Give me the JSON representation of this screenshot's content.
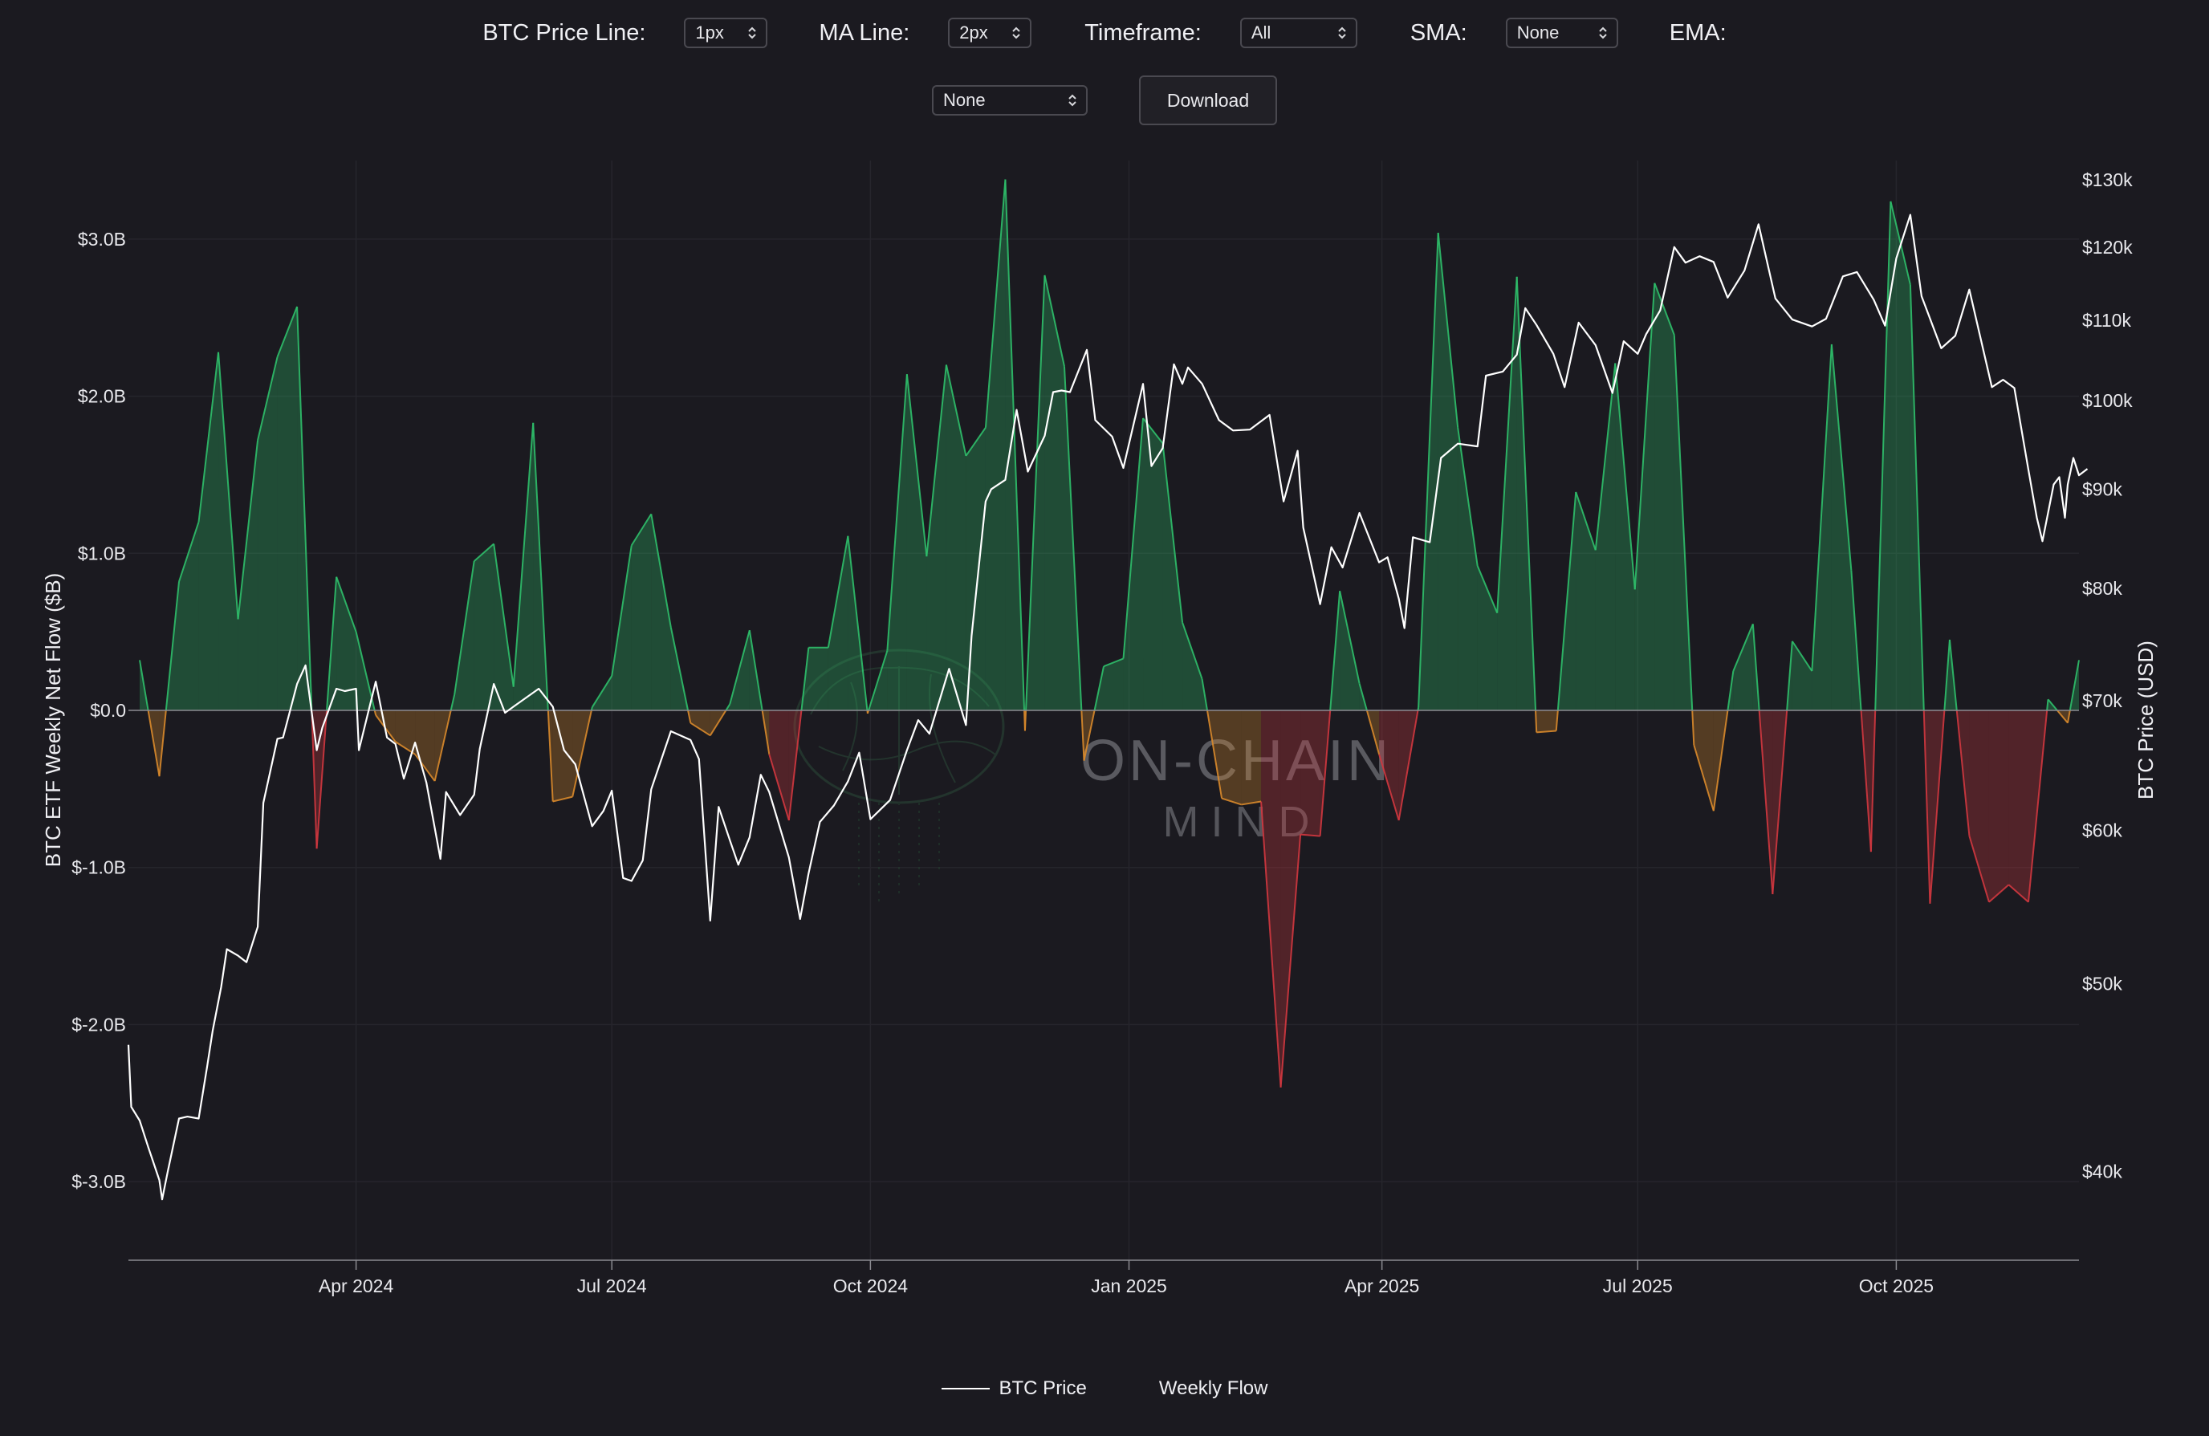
{
  "controls": {
    "price_line_label": "BTC Price Line:",
    "price_line_value": "1px",
    "ma_line_label": "MA Line:",
    "ma_line_value": "2px",
    "timeframe_label": "Timeframe:",
    "timeframe_value": "All",
    "sma_label": "SMA:",
    "sma_value": "None",
    "ema_label": "EMA:",
    "ema_value": "None",
    "download_label": "Download"
  },
  "watermark": {
    "line1": "ON-CHAIN",
    "line2": "M I N D"
  },
  "colors": {
    "background": "#1b1a20",
    "inflow": "#2fbf6a",
    "outflow": "#d1373f",
    "small_outflow": "#d98a2b",
    "price_line": "#ffffff",
    "zero_line": "#8a8a90"
  },
  "legend": {
    "price": "BTC Price",
    "flow": "Weekly Flow"
  },
  "chart_data": {
    "type": "area",
    "ylabel": "BTC ETF Weekly Net Flow ($B)",
    "y2label": "BTC Price (USD)",
    "ylim": [
      -3.5,
      3.5
    ],
    "y2lim": [
      36000,
      133000
    ],
    "y2scale": "log",
    "xlim": [
      "2024-01-11",
      "2025-12-05"
    ],
    "y_ticks": [
      {
        "v": 3,
        "label": "$3.0B"
      },
      {
        "v": 2,
        "label": "$2.0B"
      },
      {
        "v": 1,
        "label": "$1.0B"
      },
      {
        "v": 0,
        "label": "$0.0"
      },
      {
        "v": -1,
        "label": "$-1.0B"
      },
      {
        "v": -2,
        "label": "$-2.0B"
      },
      {
        "v": -3,
        "label": "$-3.0B"
      }
    ],
    "y2_ticks": [
      {
        "v": 130000,
        "label": "$130k"
      },
      {
        "v": 120000,
        "label": "$120k"
      },
      {
        "v": 110000,
        "label": "$110k"
      },
      {
        "v": 100000,
        "label": "$100k"
      },
      {
        "v": 90000,
        "label": "$90k"
      },
      {
        "v": 80000,
        "label": "$80k"
      },
      {
        "v": 70000,
        "label": "$70k"
      },
      {
        "v": 60000,
        "label": "$60k"
      },
      {
        "v": 50000,
        "label": "$50k"
      },
      {
        "v": 40000,
        "label": "$40k"
      }
    ],
    "x_ticks": [
      {
        "date": "2024-04-01",
        "label": "Apr 2024"
      },
      {
        "date": "2024-07-01",
        "label": "Jul 2024"
      },
      {
        "date": "2024-10-01",
        "label": "Oct 2024"
      },
      {
        "date": "2025-01-01",
        "label": "Jan 2025"
      },
      {
        "date": "2025-04-01",
        "label": "Apr 2025"
      },
      {
        "date": "2025-07-01",
        "label": "Jul 2025"
      },
      {
        "date": "2025-10-01",
        "label": "Oct 2025"
      }
    ],
    "flow_series": {
      "name": "Weekly Flow",
      "points": [
        [
          "2024-01-15",
          0.32
        ],
        [
          "2024-01-22",
          -0.42
        ],
        [
          "2024-01-29",
          0.82
        ],
        [
          "2024-02-05",
          1.2
        ],
        [
          "2024-02-12",
          2.28
        ],
        [
          "2024-02-19",
          0.58
        ],
        [
          "2024-02-26",
          1.72
        ],
        [
          "2024-03-04",
          2.25
        ],
        [
          "2024-03-11",
          2.57
        ],
        [
          "2024-03-18",
          -0.88
        ],
        [
          "2024-03-25",
          0.85
        ],
        [
          "2024-04-01",
          0.5
        ],
        [
          "2024-04-08",
          -0.03
        ],
        [
          "2024-04-15",
          -0.2
        ],
        [
          "2024-04-22",
          -0.28
        ],
        [
          "2024-04-29",
          -0.45
        ],
        [
          "2024-05-06",
          0.1
        ],
        [
          "2024-05-13",
          0.95
        ],
        [
          "2024-05-20",
          1.06
        ],
        [
          "2024-05-27",
          0.15
        ],
        [
          "2024-06-03",
          1.83
        ],
        [
          "2024-06-10",
          -0.58
        ],
        [
          "2024-06-17",
          -0.55
        ],
        [
          "2024-06-24",
          0.02
        ],
        [
          "2024-07-01",
          0.22
        ],
        [
          "2024-07-08",
          1.05
        ],
        [
          "2024-07-15",
          1.25
        ],
        [
          "2024-07-22",
          0.53
        ],
        [
          "2024-07-29",
          -0.08
        ],
        [
          "2024-08-05",
          -0.16
        ],
        [
          "2024-08-12",
          0.04
        ],
        [
          "2024-08-19",
          0.51
        ],
        [
          "2024-08-26",
          -0.28
        ],
        [
          "2024-09-02",
          -0.7
        ],
        [
          "2024-09-09",
          0.4
        ],
        [
          "2024-09-16",
          0.4
        ],
        [
          "2024-09-23",
          1.11
        ],
        [
          "2024-09-30",
          -0.02
        ],
        [
          "2024-10-07",
          0.38
        ],
        [
          "2024-10-14",
          2.14
        ],
        [
          "2024-10-21",
          0.98
        ],
        [
          "2024-10-28",
          2.2
        ],
        [
          "2024-11-04",
          1.62
        ],
        [
          "2024-11-11",
          1.8
        ],
        [
          "2024-11-18",
          3.38
        ],
        [
          "2024-11-25",
          -0.13
        ],
        [
          "2024-12-02",
          2.77
        ],
        [
          "2024-12-09",
          2.19
        ],
        [
          "2024-12-16",
          -0.32
        ],
        [
          "2024-12-23",
          0.28
        ],
        [
          "2024-12-30",
          0.33
        ],
        [
          "2025-01-06",
          1.86
        ],
        [
          "2025-01-13",
          1.7
        ],
        [
          "2025-01-20",
          0.56
        ],
        [
          "2025-01-27",
          0.2
        ],
        [
          "2025-02-03",
          -0.56
        ],
        [
          "2025-02-10",
          -0.6
        ],
        [
          "2025-02-17",
          -0.58
        ],
        [
          "2025-02-24",
          -2.4
        ],
        [
          "2025-03-03",
          -0.79
        ],
        [
          "2025-03-10",
          -0.8
        ],
        [
          "2025-03-17",
          0.76
        ],
        [
          "2025-03-24",
          0.17
        ],
        [
          "2025-03-31",
          -0.28
        ],
        [
          "2025-04-07",
          -0.7
        ],
        [
          "2025-04-14",
          0.02
        ],
        [
          "2025-04-21",
          3.04
        ],
        [
          "2025-04-28",
          1.8
        ],
        [
          "2025-05-05",
          0.92
        ],
        [
          "2025-05-12",
          0.62
        ],
        [
          "2025-05-19",
          2.76
        ],
        [
          "2025-05-26",
          -0.14
        ],
        [
          "2025-06-02",
          -0.13
        ],
        [
          "2025-06-09",
          1.39
        ],
        [
          "2025-06-16",
          1.02
        ],
        [
          "2025-06-23",
          2.21
        ],
        [
          "2025-06-30",
          0.77
        ],
        [
          "2025-07-07",
          2.72
        ],
        [
          "2025-07-14",
          2.39
        ],
        [
          "2025-07-21",
          -0.22
        ],
        [
          "2025-07-28",
          -0.64
        ],
        [
          "2025-08-04",
          0.25
        ],
        [
          "2025-08-11",
          0.55
        ],
        [
          "2025-08-18",
          -1.17
        ],
        [
          "2025-08-25",
          0.44
        ],
        [
          "2025-09-01",
          0.25
        ],
        [
          "2025-09-08",
          2.33
        ],
        [
          "2025-09-15",
          0.89
        ],
        [
          "2025-09-22",
          -0.9
        ],
        [
          "2025-09-29",
          3.24
        ],
        [
          "2025-10-06",
          2.71
        ],
        [
          "2025-10-13",
          -1.23
        ],
        [
          "2025-10-20",
          0.45
        ],
        [
          "2025-10-27",
          -0.8
        ],
        [
          "2025-11-03",
          -1.22
        ],
        [
          "2025-11-10",
          -1.11
        ],
        [
          "2025-11-17",
          -1.22
        ],
        [
          "2025-11-24",
          0.07
        ],
        [
          "2025-12-01",
          -0.08
        ],
        [
          "2025-12-05",
          0.32
        ]
      ]
    },
    "price_series": {
      "name": "BTC Price",
      "points": [
        [
          "2024-01-11",
          46500
        ],
        [
          "2024-01-12",
          43200
        ],
        [
          "2024-01-15",
          42500
        ],
        [
          "2024-01-18",
          41200
        ],
        [
          "2024-01-22",
          39600
        ],
        [
          "2024-01-23",
          38700
        ],
        [
          "2024-01-25",
          40000
        ],
        [
          "2024-01-29",
          42600
        ],
        [
          "2024-02-01",
          42700
        ],
        [
          "2024-02-05",
          42600
        ],
        [
          "2024-02-08",
          45300
        ],
        [
          "2024-02-10",
          47300
        ],
        [
          "2024-02-13",
          49800
        ],
        [
          "2024-02-15",
          52100
        ],
        [
          "2024-02-19",
          51700
        ],
        [
          "2024-02-22",
          51300
        ],
        [
          "2024-02-26",
          53500
        ],
        [
          "2024-02-28",
          62000
        ],
        [
          "2024-03-04",
          66900
        ],
        [
          "2024-03-06",
          67000
        ],
        [
          "2024-03-11",
          71400
        ],
        [
          "2024-03-14",
          73000
        ],
        [
          "2024-03-18",
          66000
        ],
        [
          "2024-03-20",
          67800
        ],
        [
          "2024-03-25",
          71000
        ],
        [
          "2024-03-28",
          70800
        ],
        [
          "2024-04-01",
          71000
        ],
        [
          "2024-04-02",
          66000
        ],
        [
          "2024-04-08",
          71600
        ],
        [
          "2024-04-12",
          67000
        ],
        [
          "2024-04-15",
          66500
        ],
        [
          "2024-04-18",
          63800
        ],
        [
          "2024-04-22",
          66600
        ],
        [
          "2024-04-26",
          63500
        ],
        [
          "2024-05-01",
          58000
        ],
        [
          "2024-05-03",
          62800
        ],
        [
          "2024-05-08",
          61100
        ],
        [
          "2024-05-13",
          62600
        ],
        [
          "2024-05-15",
          66100
        ],
        [
          "2024-05-20",
          71400
        ],
        [
          "2024-05-24",
          69000
        ],
        [
          "2024-05-27",
          69500
        ],
        [
          "2024-06-05",
          71000
        ],
        [
          "2024-06-10",
          69500
        ],
        [
          "2024-06-14",
          66000
        ],
        [
          "2024-06-18",
          64900
        ],
        [
          "2024-06-24",
          60300
        ],
        [
          "2024-06-28",
          61400
        ],
        [
          "2024-07-01",
          62900
        ],
        [
          "2024-07-05",
          56700
        ],
        [
          "2024-07-08",
          56500
        ],
        [
          "2024-07-12",
          57900
        ],
        [
          "2024-07-15",
          63000
        ],
        [
          "2024-07-22",
          67500
        ],
        [
          "2024-07-29",
          66800
        ],
        [
          "2024-08-01",
          65300
        ],
        [
          "2024-08-05",
          53900
        ],
        [
          "2024-08-08",
          61700
        ],
        [
          "2024-08-12",
          59300
        ],
        [
          "2024-08-15",
          57600
        ],
        [
          "2024-08-19",
          59500
        ],
        [
          "2024-08-23",
          64100
        ],
        [
          "2024-08-26",
          62800
        ],
        [
          "2024-09-02",
          58100
        ],
        [
          "2024-09-06",
          54000
        ],
        [
          "2024-09-09",
          57000
        ],
        [
          "2024-09-13",
          60600
        ],
        [
          "2024-09-18",
          61800
        ],
        [
          "2024-09-23",
          63600
        ],
        [
          "2024-09-27",
          65800
        ],
        [
          "2024-10-01",
          60800
        ],
        [
          "2024-10-08",
          62200
        ],
        [
          "2024-10-14",
          66000
        ],
        [
          "2024-10-18",
          68400
        ],
        [
          "2024-10-22",
          67300
        ],
        [
          "2024-10-29",
          72700
        ],
        [
          "2024-11-04",
          68000
        ],
        [
          "2024-11-06",
          75600
        ],
        [
          "2024-11-11",
          88700
        ],
        [
          "2024-11-13",
          90000
        ],
        [
          "2024-11-18",
          91000
        ],
        [
          "2024-11-22",
          98900
        ],
        [
          "2024-11-26",
          91900
        ],
        [
          "2024-12-02",
          95900
        ],
        [
          "2024-12-05",
          101000
        ],
        [
          "2024-12-08",
          101200
        ],
        [
          "2024-12-11",
          101000
        ],
        [
          "2024-12-17",
          106200
        ],
        [
          "2024-12-20",
          97700
        ],
        [
          "2024-12-26",
          95800
        ],
        [
          "2024-12-30",
          92300
        ],
        [
          "2025-01-06",
          102000
        ],
        [
          "2025-01-09",
          92500
        ],
        [
          "2025-01-13",
          94500
        ],
        [
          "2025-01-17",
          104400
        ],
        [
          "2025-01-20",
          102000
        ],
        [
          "2025-01-22",
          104000
        ],
        [
          "2025-01-27",
          102000
        ],
        [
          "2025-02-02",
          97700
        ],
        [
          "2025-02-07",
          96500
        ],
        [
          "2025-02-13",
          96600
        ],
        [
          "2025-02-20",
          98300
        ],
        [
          "2025-02-25",
          88700
        ],
        [
          "2025-03-02",
          94200
        ],
        [
          "2025-03-04",
          86000
        ],
        [
          "2025-03-10",
          78500
        ],
        [
          "2025-03-14",
          84000
        ],
        [
          "2025-03-18",
          82000
        ],
        [
          "2025-03-24",
          87500
        ],
        [
          "2025-03-31",
          82500
        ],
        [
          "2025-04-03",
          83000
        ],
        [
          "2025-04-07",
          79000
        ],
        [
          "2025-04-09",
          76300
        ],
        [
          "2025-04-12",
          85000
        ],
        [
          "2025-04-18",
          84500
        ],
        [
          "2025-04-22",
          93400
        ],
        [
          "2025-04-28",
          95000
        ],
        [
          "2025-05-05",
          94700
        ],
        [
          "2025-05-08",
          103000
        ],
        [
          "2025-05-14",
          103500
        ],
        [
          "2025-05-19",
          105600
        ],
        [
          "2025-05-22",
          111600
        ],
        [
          "2025-05-26",
          109400
        ],
        [
          "2025-06-01",
          105700
        ],
        [
          "2025-06-05",
          101600
        ],
        [
          "2025-06-10",
          109700
        ],
        [
          "2025-06-16",
          106800
        ],
        [
          "2025-06-22",
          100900
        ],
        [
          "2025-06-26",
          107300
        ],
        [
          "2025-07-01",
          105700
        ],
        [
          "2025-07-04",
          108200
        ],
        [
          "2025-07-09",
          111300
        ],
        [
          "2025-07-14",
          120000
        ],
        [
          "2025-07-18",
          117800
        ],
        [
          "2025-07-23",
          118700
        ],
        [
          "2025-07-28",
          117900
        ],
        [
          "2025-08-02",
          113000
        ],
        [
          "2025-08-08",
          116700
        ],
        [
          "2025-08-13",
          123300
        ],
        [
          "2025-08-19",
          112900
        ],
        [
          "2025-08-25",
          110100
        ],
        [
          "2025-09-01",
          109200
        ],
        [
          "2025-09-06",
          110200
        ],
        [
          "2025-09-12",
          115900
        ],
        [
          "2025-09-17",
          116500
        ],
        [
          "2025-09-23",
          112700
        ],
        [
          "2025-09-27",
          109300
        ],
        [
          "2025-10-01",
          118400
        ],
        [
          "2025-10-06",
          124700
        ],
        [
          "2025-10-10",
          113200
        ],
        [
          "2025-10-17",
          106400
        ],
        [
          "2025-10-22",
          108000
        ],
        [
          "2025-10-27",
          114100
        ],
        [
          "2025-11-04",
          101600
        ],
        [
          "2025-11-08",
          102500
        ],
        [
          "2025-11-12",
          101500
        ],
        [
          "2025-11-17",
          92100
        ],
        [
          "2025-11-20",
          87000
        ],
        [
          "2025-11-22",
          84600
        ],
        [
          "2025-11-26",
          90500
        ],
        [
          "2025-11-28",
          91300
        ],
        [
          "2025-11-30",
          87000
        ],
        [
          "2025-12-01",
          90500
        ],
        [
          "2025-12-03",
          93400
        ],
        [
          "2025-12-05",
          91500
        ],
        [
          "2025-12-08",
          92200
        ]
      ]
    }
  }
}
